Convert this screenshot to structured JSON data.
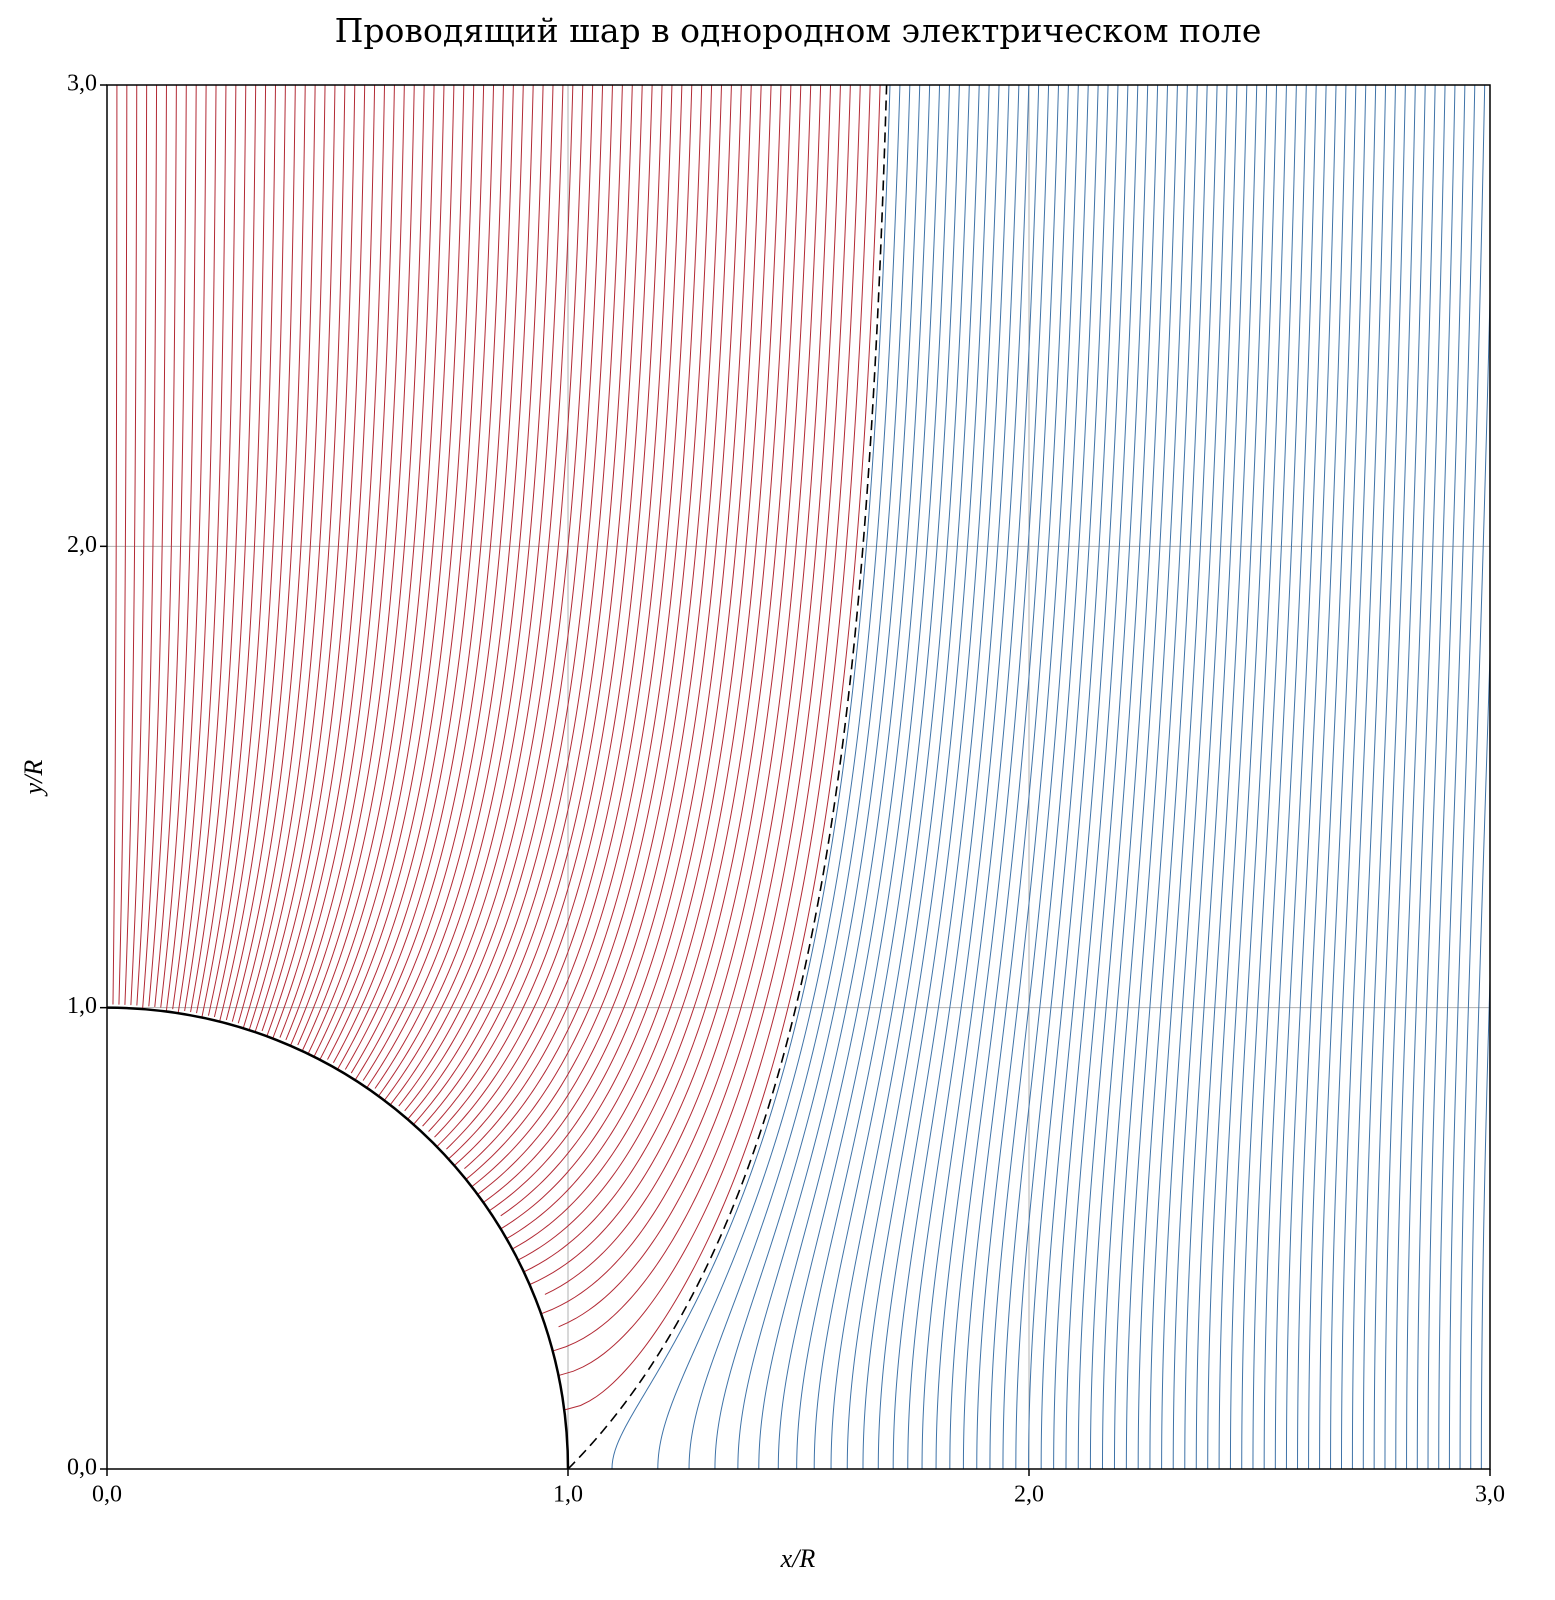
{
  "chart_data": {
    "type": "field-lines",
    "title": "Проводящий шар в однородном электрическом поле",
    "xlabel": "x/R",
    "ylabel": "y/R",
    "xlim": [
      0,
      3
    ],
    "ylim": [
      0,
      3
    ],
    "xticks": [
      {
        "value": 0,
        "label": "0,0"
      },
      {
        "value": 1,
        "label": "1,0"
      },
      {
        "value": 2,
        "label": "2,0"
      },
      {
        "value": 3,
        "label": "3,0"
      }
    ],
    "yticks": [
      {
        "value": 0,
        "label": "0,0"
      },
      {
        "value": 1,
        "label": "1,0"
      },
      {
        "value": 2,
        "label": "2,0"
      },
      {
        "value": 3,
        "label": "3,0"
      }
    ],
    "grid": true
  }
}
